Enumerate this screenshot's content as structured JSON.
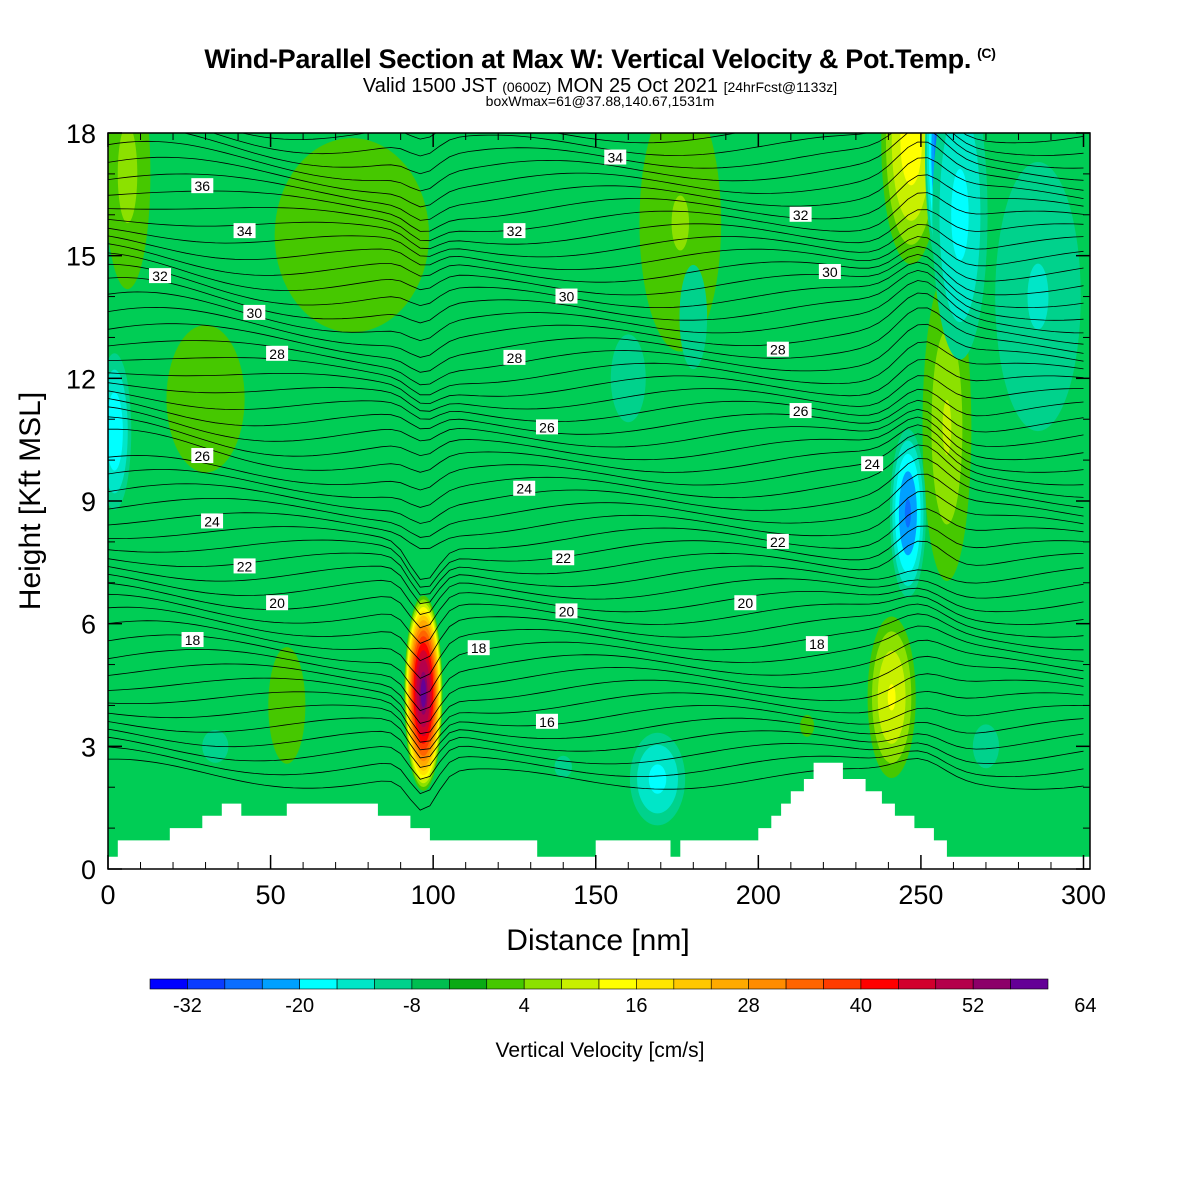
{
  "chart_data": {
    "type": "heatmap",
    "title": "Wind-Parallel Section at Max W: Vertical Velocity & Pot.Temp.",
    "title_mark": "(C)",
    "subtitle_main_a": "Valid 1500 JST",
    "subtitle_zulu": "(0600Z)",
    "subtitle_main_b": "MON 25 Oct 2021",
    "subtitle_fcst": "[24hrFcst@1133z]",
    "subtitle2": "boxWmax=61@37.88,140.67,1531m",
    "xlabel": "Distance [nm]",
    "ylabel": "Height [Kft MSL]",
    "xlim": [
      0,
      302
    ],
    "ylim": [
      0,
      18
    ],
    "xticks": [
      "0",
      "50",
      "100",
      "150",
      "200",
      "250",
      "300"
    ],
    "yticks": [
      "0",
      "3",
      "6",
      "9",
      "12",
      "15",
      "18"
    ],
    "colorbar": {
      "title": "Vertical Velocity [cm/s]",
      "tick_labels": [
        "-32",
        "-20",
        "-8",
        "4",
        "16",
        "28",
        "40",
        "52",
        "64"
      ],
      "colors": [
        "#0000ff",
        "#0a3cff",
        "#0a6eff",
        "#00a0ff",
        "#00ffff",
        "#00e6c8",
        "#00d28c",
        "#00be50",
        "#0aaa14",
        "#46c800",
        "#8ce100",
        "#c8f000",
        "#ffff00",
        "#ffe600",
        "#ffc800",
        "#ffaa00",
        "#ff8c00",
        "#ff6400",
        "#ff3c00",
        "#ff0000",
        "#d2002d",
        "#b4004b",
        "#8c0069",
        "#640096"
      ]
    },
    "background_color": "#00cd55",
    "theta_contour_labels": [
      {
        "x": 29,
        "y": 16.7,
        "value": "36"
      },
      {
        "x": 42,
        "y": 15.6,
        "value": "34"
      },
      {
        "x": 156,
        "y": 17.4,
        "value": "34"
      },
      {
        "x": 16,
        "y": 14.5,
        "value": "32"
      },
      {
        "x": 125,
        "y": 15.6,
        "value": "32"
      },
      {
        "x": 213,
        "y": 16.0,
        "value": "32"
      },
      {
        "x": 45,
        "y": 13.6,
        "value": "30"
      },
      {
        "x": 141,
        "y": 14.0,
        "value": "30"
      },
      {
        "x": 222,
        "y": 14.6,
        "value": "30"
      },
      {
        "x": 52,
        "y": 12.6,
        "value": "28"
      },
      {
        "x": 125,
        "y": 12.5,
        "value": "28"
      },
      {
        "x": 206,
        "y": 12.7,
        "value": "28"
      },
      {
        "x": 135,
        "y": 10.8,
        "value": "26"
      },
      {
        "x": 213,
        "y": 11.2,
        "value": "26"
      },
      {
        "x": 29,
        "y": 10.1,
        "value": "26"
      },
      {
        "x": 128,
        "y": 9.3,
        "value": "24"
      },
      {
        "x": 235,
        "y": 9.9,
        "value": "24"
      },
      {
        "x": 32,
        "y": 8.5,
        "value": "24"
      },
      {
        "x": 140,
        "y": 7.6,
        "value": "22"
      },
      {
        "x": 206,
        "y": 8.0,
        "value": "22"
      },
      {
        "x": 42,
        "y": 7.4,
        "value": "22"
      },
      {
        "x": 52,
        "y": 6.5,
        "value": "20"
      },
      {
        "x": 141,
        "y": 6.3,
        "value": "20"
      },
      {
        "x": 196,
        "y": 6.5,
        "value": "20"
      },
      {
        "x": 26,
        "y": 5.6,
        "value": "18"
      },
      {
        "x": 114,
        "y": 5.4,
        "value": "18"
      },
      {
        "x": 218,
        "y": 5.5,
        "value": "18"
      },
      {
        "x": 135,
        "y": 3.6,
        "value": "16"
      }
    ],
    "terrain": [
      [
        0,
        0.3
      ],
      [
        3,
        0.3
      ],
      [
        3,
        0.7
      ],
      [
        19,
        0.7
      ],
      [
        19,
        1.0
      ],
      [
        29,
        1.0
      ],
      [
        29,
        1.3
      ],
      [
        35,
        1.3
      ],
      [
        35,
        1.6
      ],
      [
        41,
        1.6
      ],
      [
        41,
        1.3
      ],
      [
        55,
        1.3
      ],
      [
        55,
        1.6
      ],
      [
        83,
        1.6
      ],
      [
        83,
        1.3
      ],
      [
        93,
        1.3
      ],
      [
        93,
        1.0
      ],
      [
        99,
        1.0
      ],
      [
        99,
        0.7
      ],
      [
        132,
        0.7
      ],
      [
        132,
        0.3
      ],
      [
        150,
        0.3
      ],
      [
        150,
        0.7
      ],
      [
        173,
        0.7
      ],
      [
        173,
        0.3
      ],
      [
        176,
        0.3
      ],
      [
        176,
        0.7
      ],
      [
        200,
        0.7
      ],
      [
        200,
        1.0
      ],
      [
        204,
        1.0
      ],
      [
        204,
        1.3
      ],
      [
        207,
        1.3
      ],
      [
        207,
        1.6
      ],
      [
        210,
        1.6
      ],
      [
        210,
        1.9
      ],
      [
        214,
        1.9
      ],
      [
        214,
        2.2
      ],
      [
        217,
        2.2
      ],
      [
        217,
        2.6
      ],
      [
        226,
        2.6
      ],
      [
        226,
        2.2
      ],
      [
        233,
        2.2
      ],
      [
        233,
        1.9
      ],
      [
        238,
        1.9
      ],
      [
        238,
        1.6
      ],
      [
        242,
        1.6
      ],
      [
        242,
        1.3
      ],
      [
        248,
        1.3
      ],
      [
        248,
        1.0
      ],
      [
        254,
        1.0
      ],
      [
        254,
        0.7
      ],
      [
        258,
        0.7
      ],
      [
        258,
        0.3
      ],
      [
        302,
        0.3
      ]
    ],
    "features": [
      {
        "kind": "updraft",
        "x": 97,
        "y": 4.3,
        "max": 68,
        "sx": 3.2,
        "sy": 1.3
      },
      {
        "kind": "updraft",
        "x": 241,
        "y": 4.2,
        "max": 20,
        "sx": 4.5,
        "sy": 1.2
      },
      {
        "kind": "updraft",
        "x": 247,
        "y": 17.8,
        "max": 22,
        "sx": 5.5,
        "sy": 1.8
      },
      {
        "kind": "updraft",
        "x": 258,
        "y": 10.8,
        "max": 14,
        "sx": 5,
        "sy": 2.5
      },
      {
        "kind": "updraft",
        "x": 6,
        "y": 17,
        "max": 12,
        "sx": 5,
        "sy": 2
      },
      {
        "kind": "updraft",
        "x": 176,
        "y": 15.8,
        "max": 10,
        "sx": 10,
        "sy": 2.5
      },
      {
        "kind": "updraft",
        "x": 75,
        "y": 15.5,
        "max": 8,
        "sx": 25,
        "sy": 2.5
      },
      {
        "kind": "updraft",
        "x": 30,
        "y": 11.5,
        "max": 7,
        "sx": 20,
        "sy": 3
      },
      {
        "kind": "updraft",
        "x": 55,
        "y": 4.0,
        "max": 8,
        "sx": 6,
        "sy": 1.5
      },
      {
        "kind": "updraft",
        "x": 215,
        "y": 3.5,
        "max": 6,
        "sx": 8,
        "sy": 1
      },
      {
        "kind": "downdraft",
        "x": 257,
        "y": 17.5,
        "min": -30,
        "sx": 3.5,
        "sy": 1.8
      },
      {
        "kind": "downdraft",
        "x": 262,
        "y": 16.0,
        "min": -16,
        "sx": 6,
        "sy": 2.5
      },
      {
        "kind": "downdraft",
        "x": 246,
        "y": 8.7,
        "min": -24,
        "sx": 3.5,
        "sy": 1.3
      },
      {
        "kind": "downdraft",
        "x": 2,
        "y": 10.7,
        "min": -18,
        "sx": 3.5,
        "sy": 1.3
      },
      {
        "kind": "downdraft",
        "x": 169,
        "y": 2.2,
        "min": -16,
        "sx": 6,
        "sy": 0.8
      },
      {
        "kind": "downdraft",
        "x": 286,
        "y": 14.0,
        "min": -10,
        "sx": 12,
        "sy": 3
      },
      {
        "kind": "downdraft",
        "x": 160,
        "y": 12.0,
        "min": -6,
        "sx": 20,
        "sy": 4
      },
      {
        "kind": "downdraft",
        "x": 180,
        "y": 13.5,
        "min": -8,
        "sx": 5,
        "sy": 1.5
      },
      {
        "kind": "downdraft",
        "x": 140,
        "y": 2.5,
        "min": -6,
        "sx": 10,
        "sy": 1
      },
      {
        "kind": "downdraft",
        "x": 270,
        "y": 3.0,
        "min": -5,
        "sx": 15,
        "sy": 2
      },
      {
        "kind": "downdraft",
        "x": 33,
        "y": 3.0,
        "min": -5,
        "sx": 15,
        "sy": 1.5
      }
    ]
  }
}
